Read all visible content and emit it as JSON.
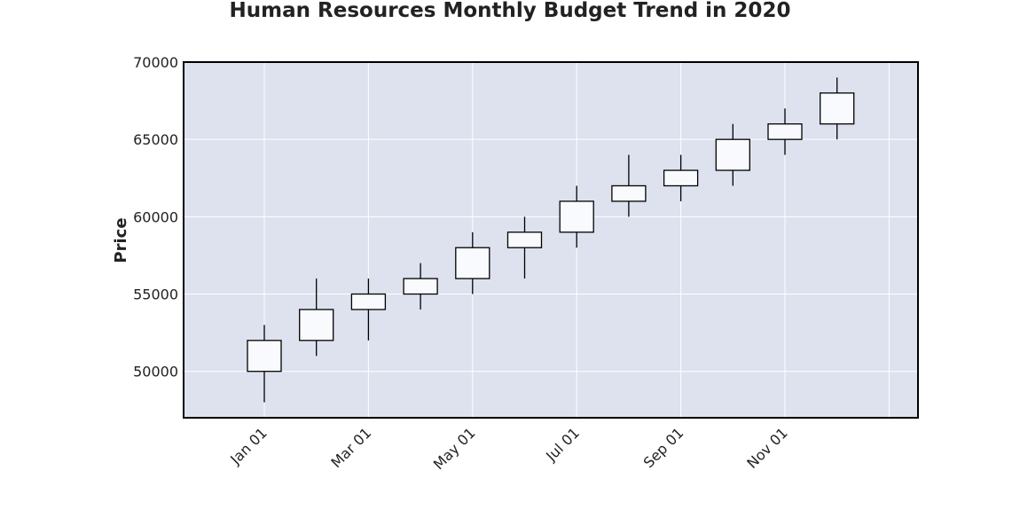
{
  "chart_data": {
    "type": "candlestick",
    "title": "Human Resources Monthly Budget Trend in 2020",
    "xlabel": "",
    "ylabel": "Price",
    "ylim": [
      47000,
      70000
    ],
    "y_ticks": [
      50000,
      55000,
      60000,
      65000,
      70000
    ],
    "x_tick_labels": [
      "Jan 01",
      "Mar 01",
      "May 01",
      "Jul 01",
      "Sep 01",
      "Nov 01"
    ],
    "grid": true,
    "colors": {
      "plot_background": "#dde2ee",
      "grid": "#ffffff",
      "candle_fill": "#f8fafd",
      "candle_edge": "#000000"
    },
    "candles": [
      {
        "month": "Jan",
        "open": 50000,
        "high": 53000,
        "low": 48000,
        "close": 52000
      },
      {
        "month": "Feb",
        "open": 52000,
        "high": 56000,
        "low": 51000,
        "close": 54000
      },
      {
        "month": "Mar",
        "open": 54000,
        "high": 56000,
        "low": 52000,
        "close": 55000
      },
      {
        "month": "Apr",
        "open": 55000,
        "high": 57000,
        "low": 54000,
        "close": 56000
      },
      {
        "month": "May",
        "open": 56000,
        "high": 59000,
        "low": 55000,
        "close": 58000
      },
      {
        "month": "Jun",
        "open": 58000,
        "high": 60000,
        "low": 56000,
        "close": 59000
      },
      {
        "month": "Jul",
        "open": 59000,
        "high": 62000,
        "low": 58000,
        "close": 61000
      },
      {
        "month": "Aug",
        "open": 61000,
        "high": 64000,
        "low": 60000,
        "close": 62000
      },
      {
        "month": "Sep",
        "open": 62000,
        "high": 64000,
        "low": 61000,
        "close": 63000
      },
      {
        "month": "Oct",
        "open": 63000,
        "high": 66000,
        "low": 62000,
        "close": 65000
      },
      {
        "month": "Nov",
        "open": 65000,
        "high": 67000,
        "low": 64000,
        "close": 66000
      },
      {
        "month": "Dec",
        "open": 66000,
        "high": 69000,
        "low": 65000,
        "close": 68000
      }
    ]
  }
}
